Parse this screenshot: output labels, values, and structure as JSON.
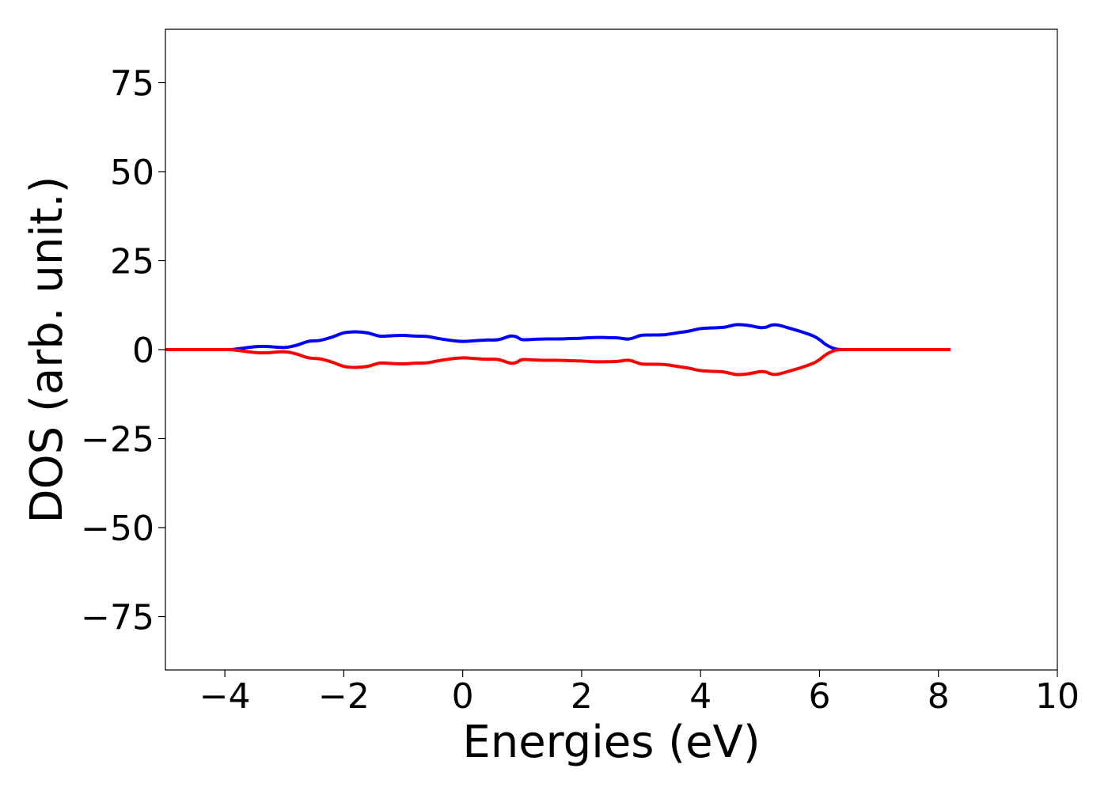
{
  "chart_data": {
    "type": "line",
    "title": "",
    "xlabel": "Energies (eV)",
    "ylabel": "DOS (arb. unit.)",
    "xlim": [
      -5,
      10
    ],
    "ylim": [
      -90,
      90
    ],
    "xticks": [
      -4,
      -2,
      0,
      2,
      4,
      6,
      8,
      10
    ],
    "yticks": [
      -75,
      -50,
      -25,
      0,
      25,
      50,
      75
    ],
    "xtick_labels": [
      "−4",
      "−2",
      "0",
      "2",
      "4",
      "6",
      "8",
      "10"
    ],
    "ytick_labels": [
      "−75",
      "−50",
      "−25",
      "0",
      "25",
      "50",
      "75"
    ],
    "grid": false,
    "legend": "none",
    "series": [
      {
        "color": "#0000ff",
        "x": [
          -5,
          -4,
          -3.8,
          -3.5,
          -3.3,
          -3.0,
          -2.8,
          -2.6,
          -2.4,
          -2.2,
          -2.0,
          -1.8,
          -1.6,
          -1.4,
          -1.2,
          -1.0,
          -0.8,
          -0.6,
          -0.4,
          -0.2,
          0.0,
          0.2,
          0.4,
          0.6,
          0.8,
          0.9,
          1.0,
          1.2,
          1.4,
          1.6,
          1.8,
          2.0,
          2.2,
          2.4,
          2.6,
          2.8,
          3.0,
          3.2,
          3.4,
          3.6,
          3.8,
          4.0,
          4.2,
          4.4,
          4.6,
          4.8,
          5.0,
          5.1,
          5.2,
          5.3,
          5.5,
          5.7,
          5.9,
          6.0,
          6.1,
          6.2,
          6.3,
          6.5,
          7,
          8.2
        ],
        "y": [
          0,
          0,
          0.2,
          0.8,
          0.9,
          0.6,
          1.2,
          2.3,
          2.6,
          3.5,
          4.7,
          5.0,
          4.7,
          3.8,
          3.9,
          4.0,
          3.8,
          3.7,
          3.1,
          2.6,
          2.3,
          2.5,
          2.7,
          2.8,
          3.8,
          3.6,
          2.8,
          2.9,
          3.0,
          3.0,
          3.1,
          3.2,
          3.4,
          3.4,
          3.3,
          3.0,
          4.0,
          4.1,
          4.2,
          4.7,
          5.2,
          5.9,
          6.1,
          6.3,
          7.0,
          6.8,
          6.2,
          6.3,
          6.9,
          6.9,
          6.0,
          5.0,
          3.8,
          2.8,
          1.5,
          0.6,
          0.1,
          0,
          0,
          0
        ]
      },
      {
        "color": "#ff0000",
        "x": [
          -5,
          -4,
          -3.8,
          -3.5,
          -3.3,
          -3.0,
          -2.8,
          -2.6,
          -2.4,
          -2.2,
          -2.0,
          -1.8,
          -1.6,
          -1.4,
          -1.2,
          -1.0,
          -0.8,
          -0.6,
          -0.4,
          -0.2,
          0.0,
          0.2,
          0.4,
          0.6,
          0.8,
          0.9,
          1.0,
          1.2,
          1.4,
          1.6,
          1.8,
          2.0,
          2.2,
          2.4,
          2.6,
          2.8,
          3.0,
          3.2,
          3.4,
          3.6,
          3.8,
          4.0,
          4.2,
          4.4,
          4.6,
          4.8,
          5.0,
          5.1,
          5.2,
          5.3,
          5.5,
          5.7,
          5.9,
          6.0,
          6.1,
          6.2,
          6.3,
          6.5,
          7,
          8.2
        ],
        "y": [
          0,
          0,
          -0.2,
          -0.8,
          -0.9,
          -0.6,
          -1.2,
          -2.3,
          -2.6,
          -3.5,
          -4.7,
          -5.0,
          -4.7,
          -3.8,
          -3.9,
          -4.0,
          -3.8,
          -3.7,
          -3.1,
          -2.6,
          -2.3,
          -2.5,
          -2.7,
          -2.8,
          -3.8,
          -3.6,
          -2.8,
          -2.9,
          -3.0,
          -3.0,
          -3.1,
          -3.2,
          -3.4,
          -3.4,
          -3.3,
          -3.0,
          -4.0,
          -4.1,
          -4.2,
          -4.7,
          -5.2,
          -5.9,
          -6.1,
          -6.3,
          -7.0,
          -6.8,
          -6.2,
          -6.3,
          -6.9,
          -6.9,
          -6.0,
          -5.0,
          -3.8,
          -2.8,
          -1.5,
          -0.6,
          -0.1,
          0,
          0,
          0
        ]
      }
    ]
  }
}
